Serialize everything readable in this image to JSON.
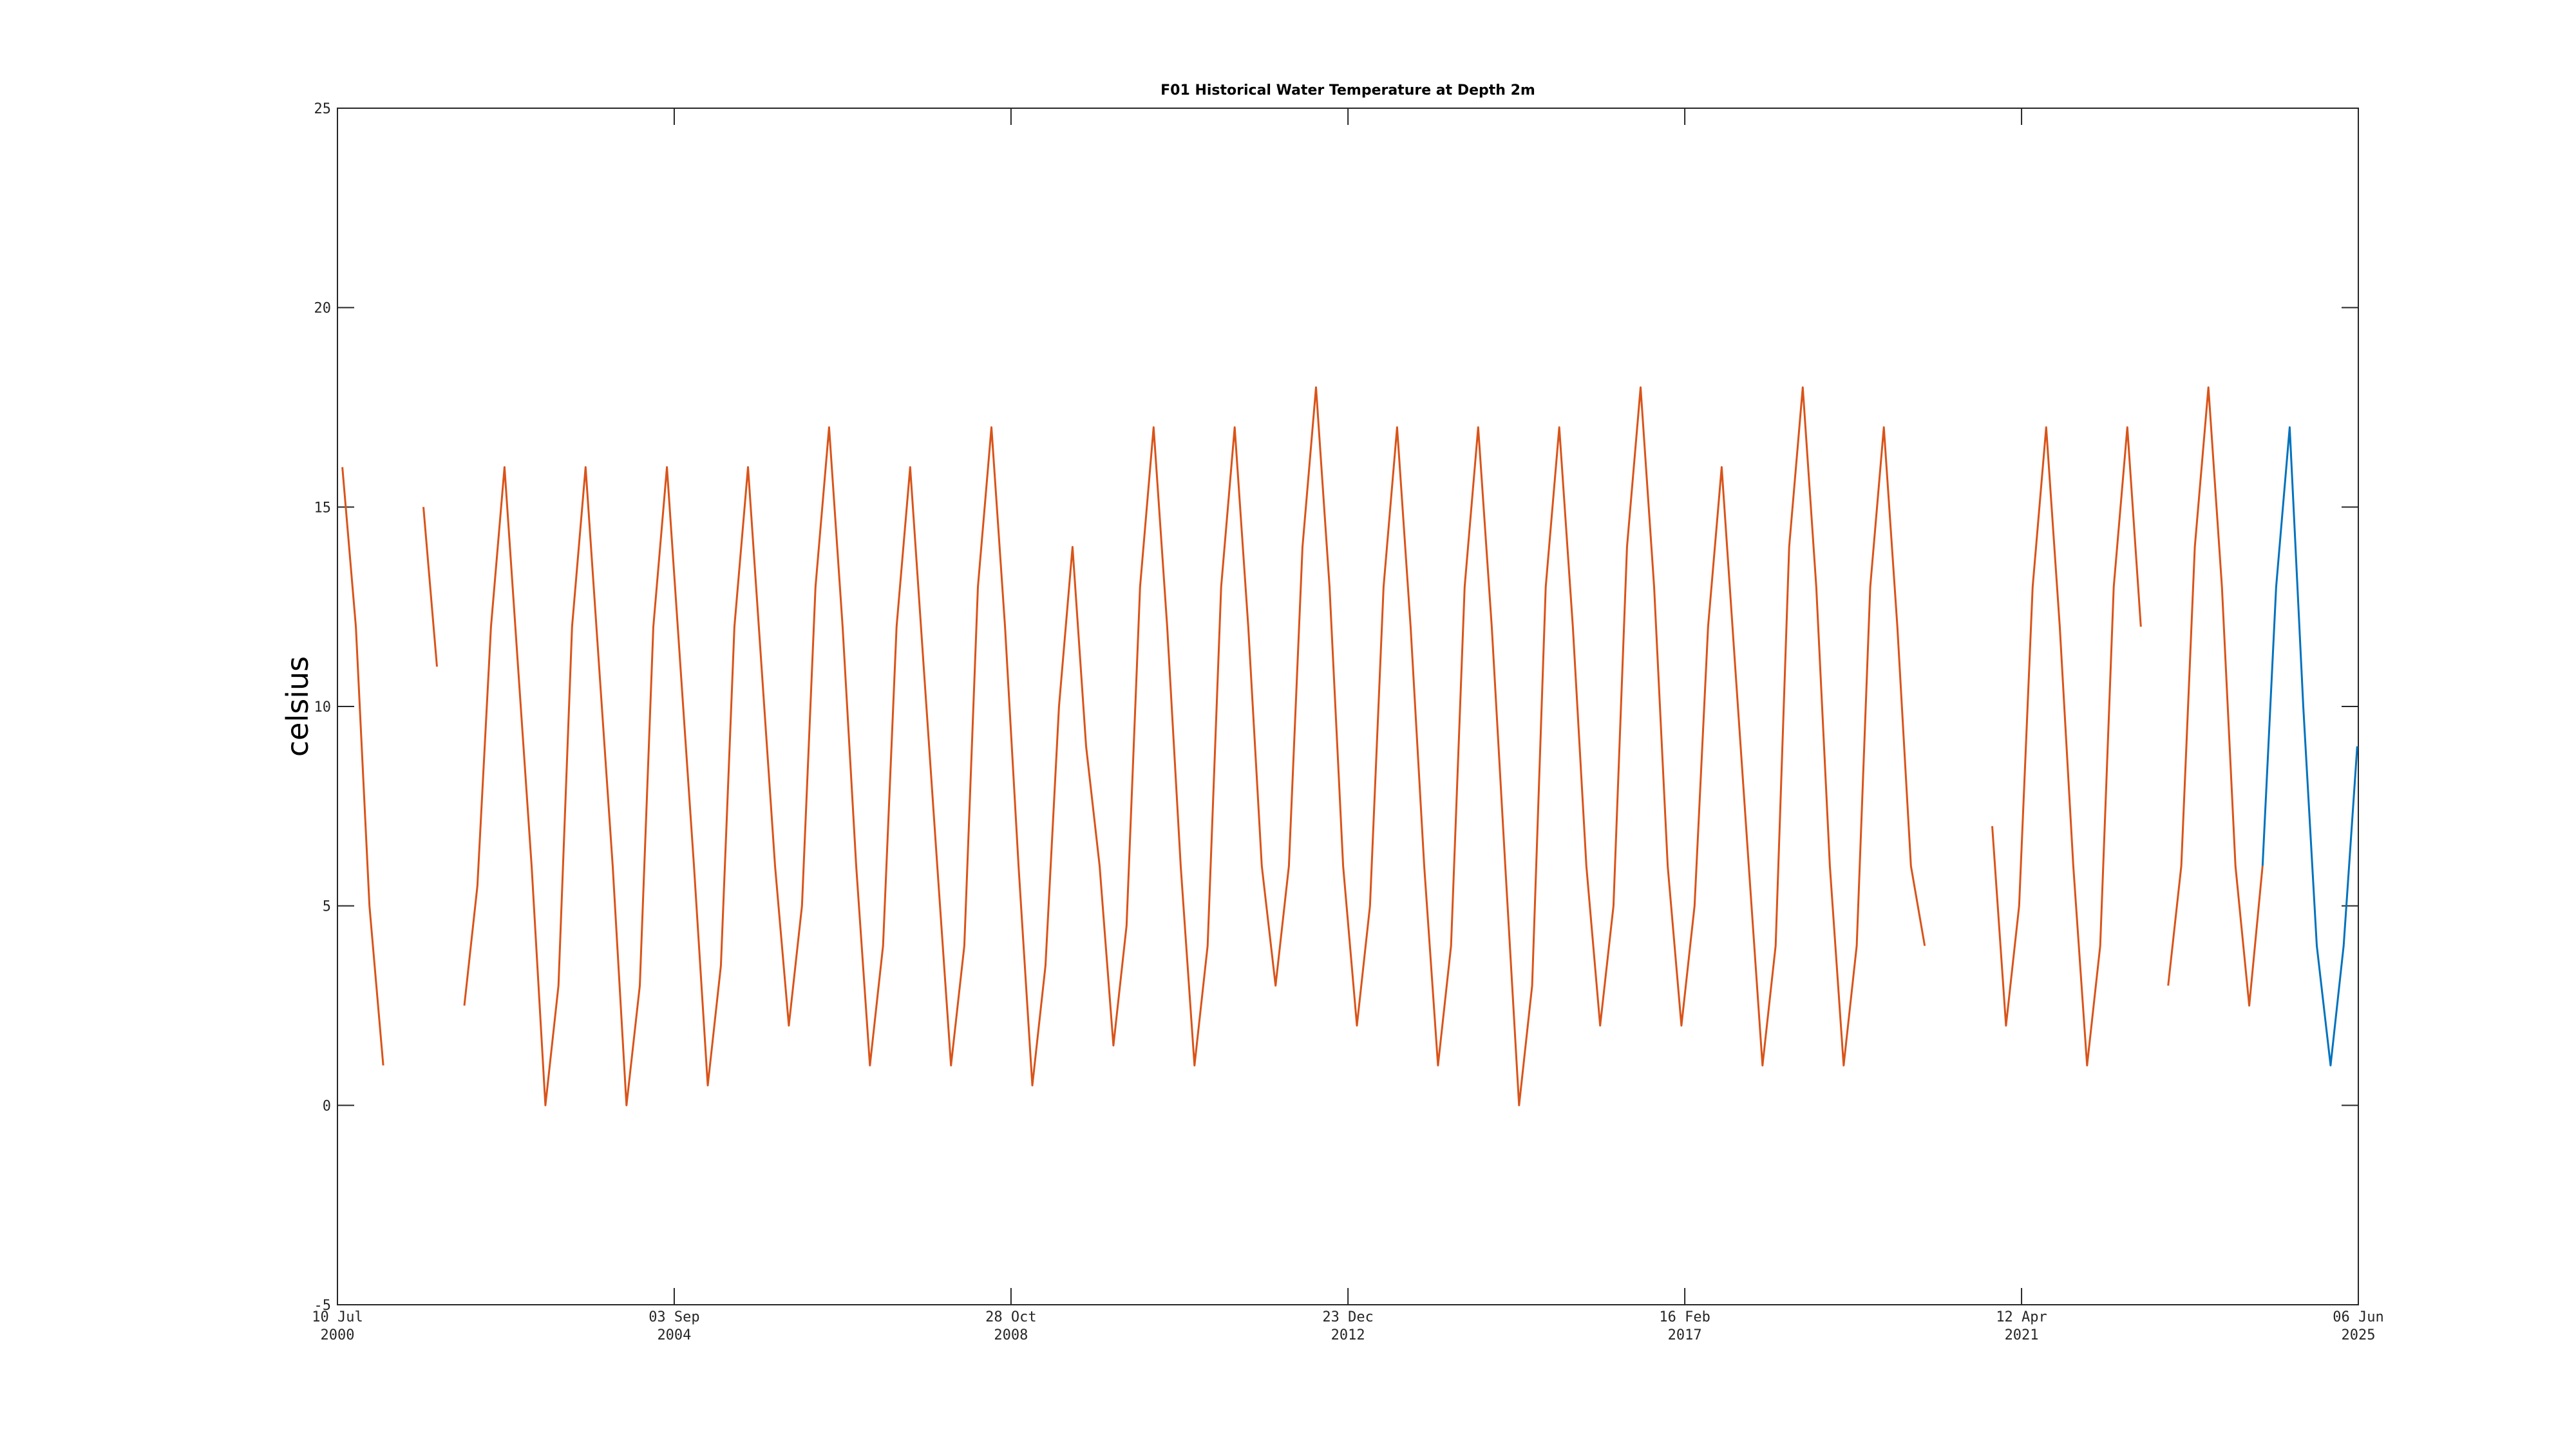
{
  "chart_data": {
    "type": "line",
    "title": "F01 Historical Water Temperature at Depth 2m",
    "y_label": "celsius",
    "xlim": [
      "2000-07-10",
      "2025-06-06"
    ],
    "xticks": [
      {
        "value": "2000-07-10",
        "label": "10 Jul 2000"
      },
      {
        "value": "2004-09-03",
        "label": "03 Sep 2004"
      },
      {
        "value": "2008-10-28",
        "label": "28 Oct 2008"
      },
      {
        "value": "2012-12-23",
        "label": "23 Dec 2012"
      },
      {
        "value": "2017-02-16",
        "label": "16 Feb 2017"
      },
      {
        "value": "2021-04-12",
        "label": "12 Apr 2021"
      },
      {
        "value": "2025-06-06",
        "label": "06 Jun 2025"
      }
    ],
    "ylim": [
      -5,
      25
    ],
    "yticks": [
      -5,
      0,
      5,
      10,
      15,
      20,
      25
    ],
    "grid": false,
    "series": [
      {
        "color": "#D95319",
        "x": [
          "2000-08-01",
          "2000-10-01",
          "2000-12-01",
          "2001-02-01",
          "2001-05-01",
          "2001-08-01",
          "2001-10-01",
          "2001-12-01",
          "2002-02-01",
          "2002-04-01",
          "2002-06-01",
          "2002-08-01",
          "2002-10-01",
          "2002-12-01",
          "2003-02-01",
          "2003-04-01",
          "2003-06-01",
          "2003-08-01",
          "2003-10-01",
          "2003-12-01",
          "2004-02-01",
          "2004-04-01",
          "2004-06-01",
          "2004-08-01",
          "2004-10-01",
          "2004-12-01",
          "2005-02-01",
          "2005-04-01",
          "2005-06-01",
          "2005-08-01",
          "2005-10-01",
          "2005-12-01",
          "2006-02-01",
          "2006-04-01",
          "2006-06-01",
          "2006-08-01",
          "2006-10-01",
          "2006-12-01",
          "2007-02-01",
          "2007-04-01",
          "2007-06-01",
          "2007-08-01",
          "2007-10-01",
          "2007-12-01",
          "2008-02-01",
          "2008-04-01",
          "2008-06-01",
          "2008-08-01",
          "2008-10-01",
          "2008-12-01",
          "2009-02-01",
          "2009-04-01",
          "2009-06-01",
          "2009-08-01",
          "2009-10-01",
          "2009-12-01",
          "2010-02-01",
          "2010-04-01",
          "2010-06-01",
          "2010-08-01",
          "2010-10-01",
          "2010-12-01",
          "2011-02-01",
          "2011-04-01",
          "2011-06-01",
          "2011-08-01",
          "2011-10-01",
          "2011-12-01",
          "2012-02-01",
          "2012-04-01",
          "2012-06-01",
          "2012-08-01",
          "2012-10-01",
          "2012-12-01",
          "2013-02-01",
          "2013-04-01",
          "2013-06-01",
          "2013-08-01",
          "2013-10-01",
          "2013-12-01",
          "2014-02-01",
          "2014-04-01",
          "2014-06-01",
          "2014-08-01",
          "2014-10-01",
          "2014-12-01",
          "2015-02-01",
          "2015-04-01",
          "2015-06-01",
          "2015-08-01",
          "2015-10-01",
          "2015-12-01",
          "2016-02-01",
          "2016-04-01",
          "2016-06-01",
          "2016-08-01",
          "2016-10-01",
          "2016-12-01",
          "2017-02-01",
          "2017-04-01",
          "2017-06-01",
          "2017-08-01",
          "2017-10-01",
          "2017-12-01",
          "2018-02-01",
          "2018-04-01",
          "2018-06-01",
          "2018-08-01",
          "2018-10-01",
          "2018-12-01",
          "2019-02-01",
          "2019-04-01",
          "2019-06-01",
          "2019-08-01",
          "2019-10-01",
          "2019-12-01",
          "2020-02-01",
          "2020-06-01",
          "2020-12-01",
          "2021-02-01",
          "2021-04-01",
          "2021-06-01",
          "2021-08-01",
          "2021-10-01",
          "2021-12-01",
          "2022-02-01",
          "2022-04-01",
          "2022-06-01",
          "2022-08-01",
          "2022-10-01",
          "2022-12-01",
          "2023-02-01",
          "2023-04-01",
          "2023-06-01",
          "2023-08-01",
          "2023-10-01",
          "2023-12-01",
          "2024-02-01",
          "2024-04-01"
        ],
        "values": [
          16,
          12,
          5,
          1,
          null,
          15,
          11,
          null,
          2.5,
          5.5,
          12,
          16,
          11,
          6,
          0,
          3,
          12,
          16,
          11,
          6,
          0,
          3,
          12,
          16,
          11,
          6,
          0.5,
          3.5,
          12,
          16,
          11,
          6,
          2,
          5,
          13,
          17,
          12,
          6,
          1,
          4,
          12,
          16,
          11,
          6,
          1,
          4,
          13,
          17,
          12,
          6,
          0.5,
          3.5,
          10,
          14,
          9,
          6,
          1.5,
          4.5,
          13,
          17,
          12,
          6,
          1,
          4,
          13,
          17,
          12,
          6,
          3,
          6,
          14,
          18,
          13,
          6,
          2,
          5,
          13,
          17,
          12,
          6,
          1,
          4,
          13,
          17,
          12,
          6,
          0,
          3,
          13,
          17,
          12,
          6,
          2,
          5,
          14,
          18,
          13,
          6,
          2,
          5,
          12,
          16,
          11,
          6,
          1,
          4,
          14,
          18,
          13,
          6,
          1,
          4,
          13,
          17,
          12,
          6,
          4,
          null,
          7,
          2,
          5,
          13,
          17,
          12,
          6,
          1,
          4,
          13,
          17,
          12,
          null,
          3,
          6,
          14,
          18,
          13,
          6,
          2.5,
          6
        ]
      },
      {
        "color": "#0072BD",
        "x": [
          "2024-04-01",
          "2024-06-01",
          "2024-08-01",
          "2024-10-01",
          "2024-12-01",
          "2025-02-01",
          "2025-04-01",
          "2025-06-01"
        ],
        "values": [
          6,
          13,
          17,
          10,
          4,
          1,
          4,
          9
        ]
      }
    ]
  }
}
